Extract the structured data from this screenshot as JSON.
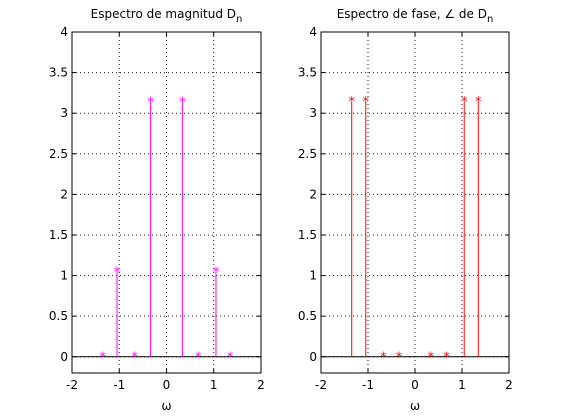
{
  "chart_data": [
    {
      "type": "stem",
      "title": "Espectro de magnitud D",
      "title_sub": "n",
      "xlabel": "ω",
      "ylabel": "",
      "xlim": [
        -2,
        2
      ],
      "ylim": [
        -0.2,
        4
      ],
      "xticks": [
        -2,
        -1,
        0,
        1,
        2
      ],
      "yticks": [
        0,
        0.5,
        1,
        1.5,
        2,
        2.5,
        3,
        3.5,
        4
      ],
      "grid": true,
      "color": "#ff00ff",
      "marker": "*",
      "x": [
        -1.3464,
        -1.0472,
        -0.6732,
        -0.3366,
        0.3366,
        0.6732,
        1.0472,
        1.3464
      ],
      "y": [
        0,
        1.047,
        0,
        3.14,
        3.14,
        0,
        1.047,
        0
      ]
    },
    {
      "type": "stem",
      "title": "Espectro de fase, ∠ de D",
      "title_sub": "n",
      "xlabel": "ω",
      "ylabel": "",
      "xlim": [
        -2,
        2
      ],
      "ylim": [
        -0.2,
        4
      ],
      "xticks": [
        -2,
        -1,
        0,
        1,
        2
      ],
      "yticks": [
        0,
        0.5,
        1,
        1.5,
        2,
        2.5,
        3,
        3.5,
        4
      ],
      "grid": true,
      "color": "#ff0000",
      "marker": "*",
      "x": [
        -1.3464,
        -1.0472,
        -0.6732,
        -0.3366,
        0.3366,
        0.6732,
        1.0472,
        1.3464
      ],
      "y": [
        3.1416,
        3.1416,
        0,
        0,
        0,
        0,
        3.1416,
        3.1416
      ]
    }
  ]
}
